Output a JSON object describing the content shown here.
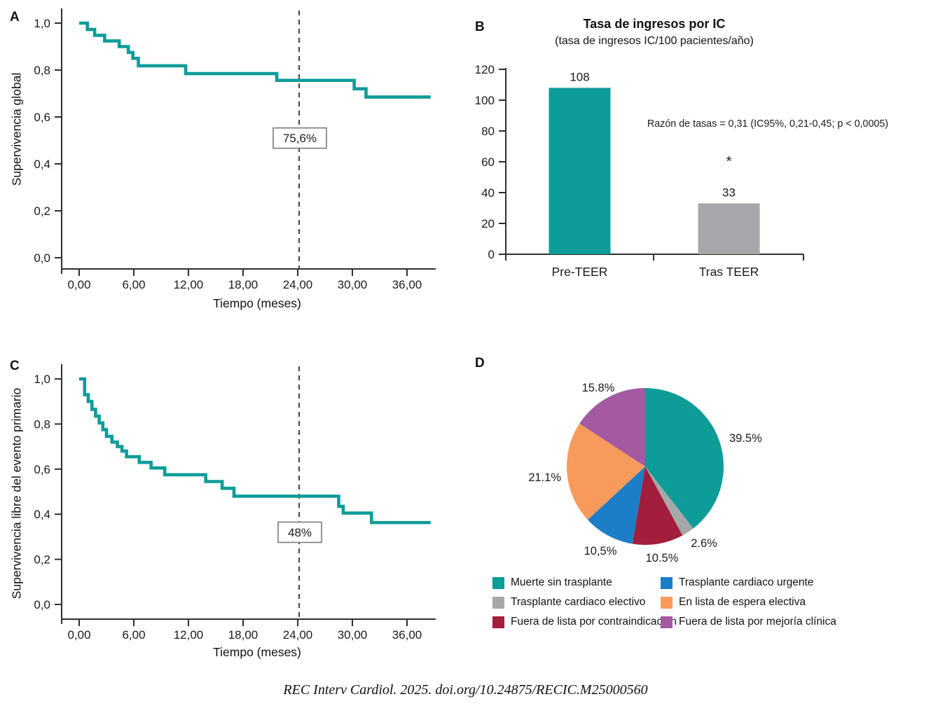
{
  "page": {
    "citation": "REC Interv Cardiol. 2025. doi.org/10.24875/RECIC.M25000560"
  },
  "colors": {
    "teal": "#0E9C99",
    "gray": "#A5A7AA",
    "blue": "#1C7EC6",
    "orange": "#F79A5B",
    "purple": "#A35AA0",
    "red": "#A31E3C",
    "axis": "#2E2E2E",
    "text": "#1A1A1A",
    "annotation_border": "#7A7A7A"
  },
  "chart_data": [
    {
      "id": "panel-a",
      "panel_label": "A",
      "type": "line",
      "subtype": "kaplan-meier-step",
      "ylabel": "Supervivencia global",
      "xlabel": "Tiempo (meses)",
      "xlim": [
        0,
        38.6
      ],
      "ylim": [
        0,
        1.0
      ],
      "x_ticks": [
        {
          "label": "0,00",
          "value": 0
        },
        {
          "label": "6,00",
          "value": 6
        },
        {
          "label": "12,00",
          "value": 12
        },
        {
          "label": "18,00",
          "value": 18
        },
        {
          "label": "24,00",
          "value": 24
        },
        {
          "label": "30,00",
          "value": 30
        },
        {
          "label": "36,00",
          "value": 36
        }
      ],
      "y_ticks": [
        {
          "label": "1,0",
          "value": 1.0
        },
        {
          "label": "0,8",
          "value": 0.8
        },
        {
          "label": "0,6",
          "value": 0.6
        },
        {
          "label": "0,4",
          "value": 0.4
        },
        {
          "label": "0,2",
          "value": 0.2
        },
        {
          "label": "0,0",
          "value": 0.0
        }
      ],
      "dashed_line_x": 24,
      "annotation": {
        "text": "75,6%",
        "x": 24,
        "y": 0.51
      },
      "series": [
        {
          "name": "Supervivencia global",
          "color": "teal",
          "drop_points": [
            [
              0,
              1.0
            ],
            [
              0.9,
              0.973
            ],
            [
              1.7,
              0.948
            ],
            [
              2.8,
              0.924
            ],
            [
              4.4,
              0.9
            ],
            [
              5.4,
              0.875
            ],
            [
              5.9,
              0.85
            ],
            [
              6.5,
              0.818
            ],
            [
              11.7,
              0.785
            ],
            [
              21.7,
              0.756
            ],
            [
              30.2,
              0.72
            ],
            [
              31.5,
              0.685
            ]
          ],
          "end_x": 38.6
        }
      ]
    },
    {
      "id": "panel-b",
      "panel_label": "B",
      "type": "bar",
      "title": "Tasa de ingresos por IC",
      "subtitle": "(tasa de ingresos IC/100 pacientes/año)",
      "categories": [
        "Pre-TEER",
        "Tras TEER"
      ],
      "values": [
        108,
        33
      ],
      "bar_value_labels": [
        "108",
        "33"
      ],
      "bar_colors": [
        "teal",
        "gray"
      ],
      "significance_marker": "*",
      "significance_on": "Tras TEER",
      "annotation": "Razón de tasas = 0,31 (IC95%, 0,21-0,45; p < 0,0005)",
      "ylim": [
        0,
        120
      ],
      "y_ticks": [
        {
          "label": "0",
          "value": 0
        },
        {
          "label": "20",
          "value": 20
        },
        {
          "label": "40",
          "value": 40
        },
        {
          "label": "60",
          "value": 60
        },
        {
          "label": "80",
          "value": 80
        },
        {
          "label": "100",
          "value": 100
        },
        {
          "label": "120",
          "value": 120
        }
      ]
    },
    {
      "id": "panel-c",
      "panel_label": "C",
      "type": "line",
      "subtype": "kaplan-meier-step",
      "ylabel": "Supervivencia libre del evento primario",
      "xlabel": "Tiempo (meses)",
      "xlim": [
        0,
        38.6
      ],
      "ylim": [
        0,
        1.0
      ],
      "x_ticks": [
        {
          "label": "0,00",
          "value": 0
        },
        {
          "label": "6,00",
          "value": 6
        },
        {
          "label": "12,00",
          "value": 12
        },
        {
          "label": "18,00",
          "value": 18
        },
        {
          "label": "24,00",
          "value": 24
        },
        {
          "label": "30,00",
          "value": 30
        },
        {
          "label": "36,00",
          "value": 36
        }
      ],
      "y_ticks": [
        {
          "label": "1,0",
          "value": 1.0
        },
        {
          "label": "0,8",
          "value": 0.8
        },
        {
          "label": "0,6",
          "value": 0.6
        },
        {
          "label": "0,4",
          "value": 0.4
        },
        {
          "label": "0,2",
          "value": 0.2
        },
        {
          "label": "0,0",
          "value": 0.0
        }
      ],
      "dashed_line_x": 24,
      "annotation": {
        "text": "48%",
        "x": 24,
        "y": 0.32
      },
      "series": [
        {
          "name": "Supervivencia libre del evento primario",
          "color": "teal",
          "drop_points": [
            [
              0,
              1.0
            ],
            [
              0.6,
              0.93
            ],
            [
              1.0,
              0.9
            ],
            [
              1.4,
              0.865
            ],
            [
              1.8,
              0.835
            ],
            [
              2.2,
              0.805
            ],
            [
              2.6,
              0.775
            ],
            [
              3.0,
              0.745
            ],
            [
              3.6,
              0.72
            ],
            [
              4.2,
              0.7
            ],
            [
              4.7,
              0.68
            ],
            [
              5.2,
              0.655
            ],
            [
              6.6,
              0.63
            ],
            [
              7.9,
              0.605
            ],
            [
              9.4,
              0.575
            ],
            [
              13.9,
              0.545
            ],
            [
              15.7,
              0.515
            ],
            [
              17.0,
              0.48
            ],
            [
              28.5,
              0.435
            ],
            [
              29.0,
              0.405
            ],
            [
              32.1,
              0.363
            ]
          ],
          "end_x": 38.6
        }
      ]
    },
    {
      "id": "panel-d",
      "panel_label": "D",
      "type": "pie",
      "slices": [
        {
          "label": "Muerte sin trasplante",
          "value": 39.5,
          "display": "39.5%",
          "color": "teal"
        },
        {
          "label": "Trasplante cardiaco electivo",
          "value": 2.6,
          "display": "2.6%",
          "color": "gray"
        },
        {
          "label": "Fuera de lista por contraindicación",
          "value": 10.5,
          "display": "10.5%",
          "color": "red"
        },
        {
          "label": "Trasplante cardiaco urgente",
          "value": 10.5,
          "display": "10,5%",
          "color": "blue"
        },
        {
          "label": "En lista de espera electiva",
          "value": 21.1,
          "display": "21.1%",
          "color": "orange"
        },
        {
          "label": "Fuera de lista por mejoría clínica",
          "value": 15.8,
          "display": "15.8%",
          "color": "purple"
        }
      ],
      "legend_columns": [
        [
          0,
          1,
          2
        ],
        [
          3,
          4,
          5
        ]
      ]
    }
  ]
}
